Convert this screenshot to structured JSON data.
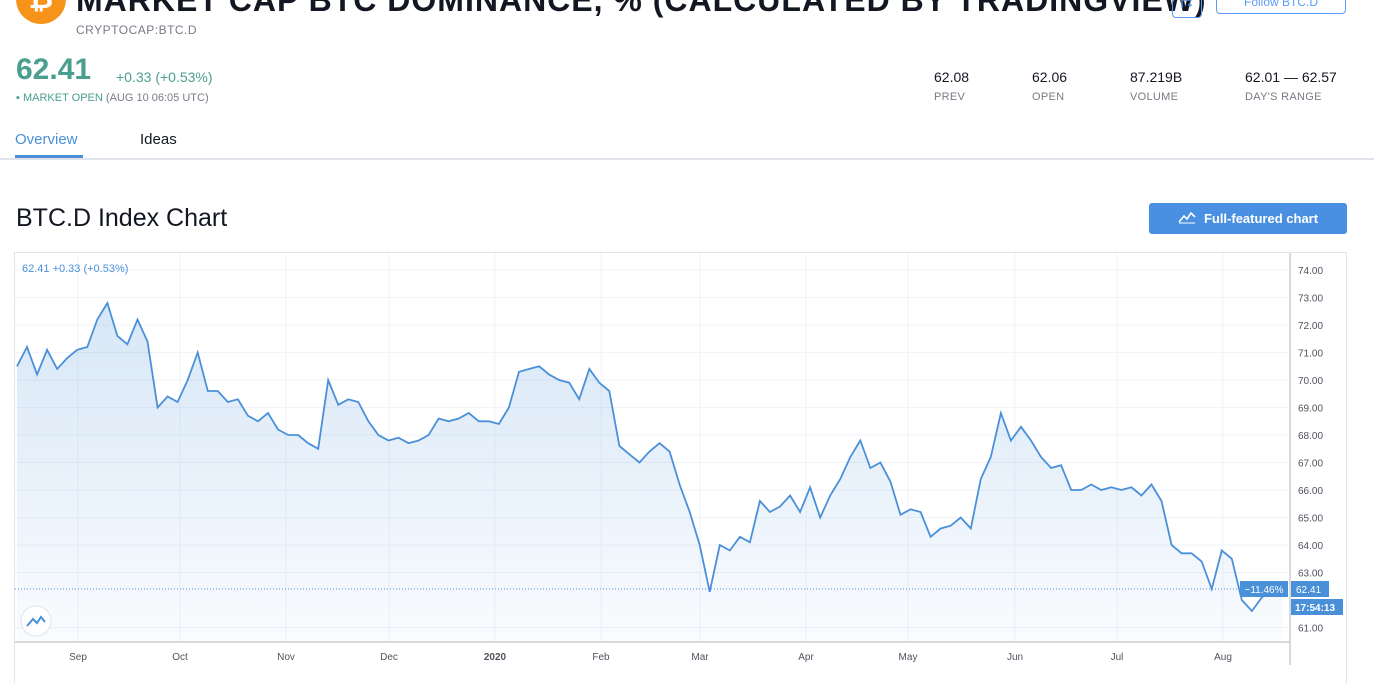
{
  "header": {
    "title": "MARKET CAP BTC DOMINANCE, % (CALCULATED BY TRADINGVIEW)",
    "symbol": "CRYPTOCAP:BTC.D",
    "follow_label": "Follow BTC.D",
    "logo_glyph": "₿",
    "logo_color": "#f7931a"
  },
  "quote": {
    "price": "62.41",
    "change": "+0.33 (+0.53%)",
    "status": "MARKET OPEN",
    "time": "(AUG 10 06:05 UTC)",
    "color": "#4a9e8f"
  },
  "stats": [
    {
      "value": "62.08",
      "label": "PREV"
    },
    {
      "value": "62.06",
      "label": "OPEN"
    },
    {
      "value": "87.219B",
      "label": "VOLUME"
    },
    {
      "value": "62.01 — 62.57",
      "label": "DAY'S RANGE"
    }
  ],
  "tabs": [
    {
      "label": "Overview",
      "active": true
    },
    {
      "label": "Ideas",
      "active": false
    }
  ],
  "section": {
    "title": "BTC.D Index Chart",
    "full_chart_label": "Full-featured chart"
  },
  "chart_data": {
    "type": "area",
    "legend": "62.41  +0.33 (+0.53%)",
    "ylim": [
      61,
      74
    ],
    "y_ticks": [
      "74.00",
      "73.00",
      "72.00",
      "71.00",
      "70.00",
      "69.00",
      "68.00",
      "67.00",
      "66.00",
      "65.00",
      "64.00",
      "63.00",
      "61.00"
    ],
    "x_ticks": [
      "Sep",
      "Oct",
      "Nov",
      "Dec",
      "2020",
      "Feb",
      "Mar",
      "Apr",
      "May",
      "Jun",
      "Jul",
      "Aug"
    ],
    "current_value": "62.41",
    "percent_label": "−11.46%",
    "countdown": "17:54:13",
    "line_color": "#4a90d9",
    "series": [
      {
        "values": [
          70.5,
          71.2,
          70.2,
          71.1,
          70.4,
          70.8,
          71.1,
          71.2,
          72.2,
          72.8,
          71.6,
          71.3,
          72.2,
          71.4,
          69.0,
          69.4,
          69.2,
          70.0,
          71.0,
          69.6,
          69.6,
          69.2,
          69.3,
          68.7,
          68.5,
          68.8,
          68.2,
          68.0,
          68.0,
          67.7,
          67.5,
          70.0,
          69.1,
          69.3,
          69.2,
          68.5,
          68.0,
          67.8,
          67.9,
          67.7,
          67.8,
          68.0,
          68.6,
          68.5,
          68.6,
          68.8,
          68.5,
          68.5,
          68.4,
          69.0,
          70.3,
          70.4,
          70.5,
          70.2,
          70.0,
          69.9,
          69.3,
          70.4,
          69.9,
          69.6,
          67.6,
          67.3,
          67.0,
          67.4,
          67.7,
          67.4,
          66.2,
          65.2,
          64.0,
          62.3,
          64.0,
          63.8,
          64.3,
          64.1,
          65.6,
          65.2,
          65.4,
          65.8,
          65.2,
          66.1,
          65.0,
          65.8,
          66.4,
          67.2,
          67.8,
          66.8,
          67.0,
          66.3,
          65.1,
          65.3,
          65.2,
          64.3,
          64.6,
          64.7,
          65.0,
          64.6,
          66.4,
          67.2,
          68.8,
          67.8,
          68.3,
          67.8,
          67.2,
          66.8,
          66.9,
          66.0,
          66.0,
          66.2,
          66.0,
          66.1,
          66.0,
          66.1,
          65.8,
          66.2,
          65.6,
          64.0,
          63.7,
          63.7,
          63.4,
          62.4,
          63.8,
          63.5,
          62.0,
          61.6,
          62.1,
          62.3,
          62.41
        ]
      }
    ]
  }
}
